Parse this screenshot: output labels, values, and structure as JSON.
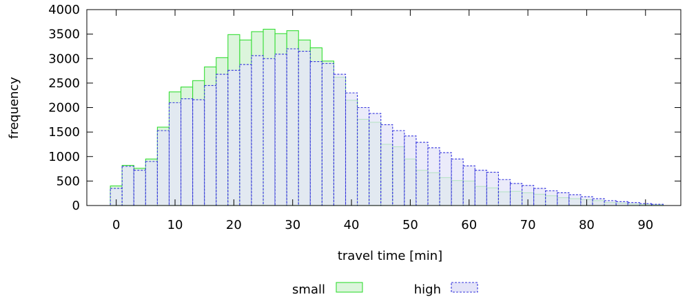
{
  "chart_data": {
    "type": "bar",
    "xlabel": "travel time [min]",
    "ylabel": "frequency",
    "xlim": [
      -5,
      96
    ],
    "ylim": [
      0,
      4000
    ],
    "xticks": [
      0,
      10,
      20,
      30,
      40,
      50,
      60,
      70,
      80,
      90
    ],
    "yticks": [
      0,
      500,
      1000,
      1500,
      2000,
      2500,
      3000,
      3500,
      4000
    ],
    "bin_width": 2,
    "x": [
      0,
      2,
      4,
      6,
      8,
      10,
      12,
      14,
      16,
      18,
      20,
      22,
      24,
      26,
      28,
      30,
      32,
      34,
      36,
      38,
      40,
      42,
      44,
      46,
      48,
      50,
      52,
      54,
      56,
      58,
      60,
      62,
      64,
      66,
      68,
      70,
      72,
      74,
      76,
      78,
      80,
      82,
      84,
      86,
      88,
      90,
      92
    ],
    "legend_position": "bottom",
    "series": [
      {
        "name": "small",
        "color": "#33dd33",
        "fill": "#dcf5dc",
        "style": "solid",
        "values": [
          400,
          820,
          760,
          950,
          1600,
          2320,
          2420,
          2550,
          2830,
          3020,
          3490,
          3380,
          3550,
          3600,
          3510,
          3570,
          3380,
          3220,
          2950,
          2620,
          2150,
          1760,
          1700,
          1250,
          1200,
          950,
          720,
          670,
          570,
          510,
          500,
          390,
          360,
          280,
          290,
          260,
          230,
          200,
          160,
          140,
          120,
          100,
          60,
          50,
          30,
          20,
          15
        ]
      },
      {
        "name": "high",
        "color": "#3333dd",
        "fill": "#e4e4f8",
        "style": "dashed",
        "values": [
          350,
          800,
          720,
          900,
          1530,
          2100,
          2180,
          2160,
          2450,
          2680,
          2760,
          2880,
          3060,
          3000,
          3090,
          3200,
          3150,
          2940,
          2900,
          2680,
          2300,
          2000,
          1880,
          1650,
          1530,
          1420,
          1290,
          1180,
          1080,
          950,
          810,
          720,
          680,
          530,
          450,
          410,
          350,
          300,
          260,
          220,
          180,
          140,
          100,
          80,
          60,
          40,
          25
        ]
      }
    ]
  }
}
